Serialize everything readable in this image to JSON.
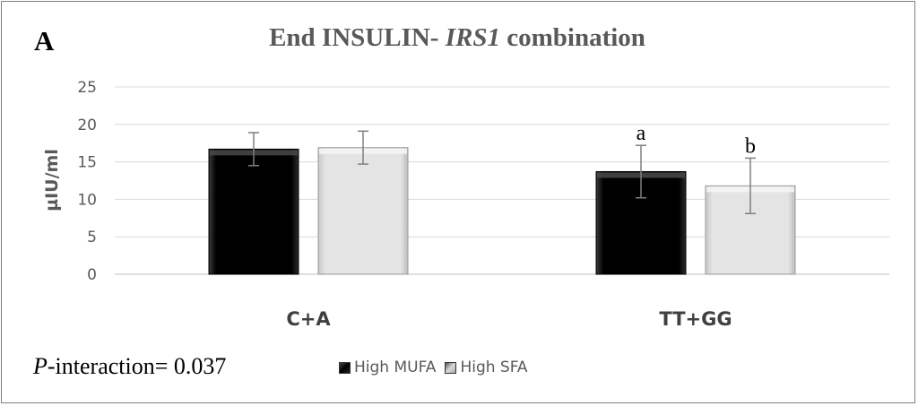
{
  "panel_letter": "A",
  "title": {
    "pre": "End INSULIN- ",
    "gene": "IRS1",
    "post": " combination"
  },
  "footer": {
    "p_italic": "P",
    "p_text": "-interaction= 0.037"
  },
  "colors": {
    "high_mufa": "#000000",
    "high_sfa": "#e0e0e0",
    "title": "#595959",
    "grid": "#d9d9d9"
  },
  "chart_data": {
    "type": "bar",
    "ylabel": "µIU/ml",
    "xlabel": "",
    "ylim": [
      0,
      25
    ],
    "yticks": [
      0,
      5,
      10,
      15,
      20,
      25
    ],
    "grid": true,
    "legend_position": "bottom",
    "categories": [
      "C+A",
      "TT+GG"
    ],
    "series": [
      {
        "name": "High MUFA",
        "values": [
          16.7,
          13.7
        ],
        "errors": [
          2.2,
          3.5
        ],
        "annotations": [
          "",
          "a"
        ]
      },
      {
        "name": "High SFA",
        "values": [
          16.9,
          11.8
        ],
        "errors": [
          2.2,
          3.7
        ],
        "annotations": [
          "",
          "b"
        ]
      }
    ]
  }
}
